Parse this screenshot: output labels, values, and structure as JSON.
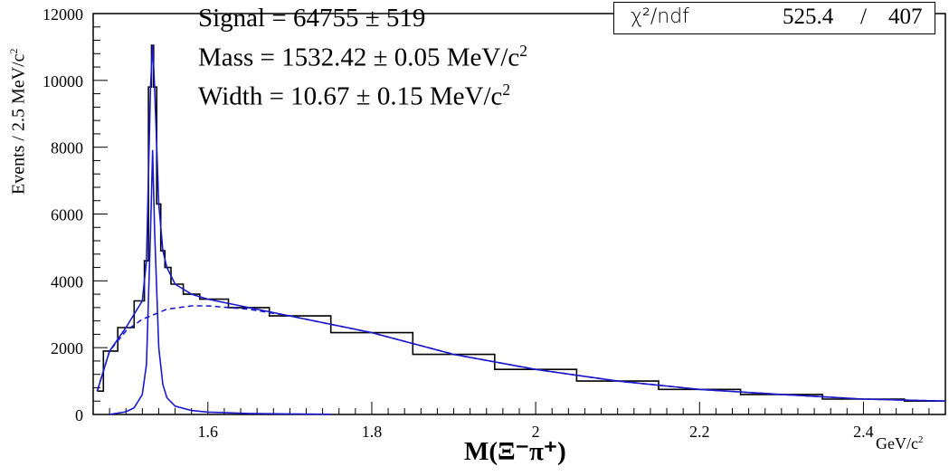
{
  "chart_data": {
    "type": "histogram-fit",
    "xlim": [
      1.46,
      2.5
    ],
    "ylim": [
      0,
      12000
    ],
    "x_ticks": [
      1.6,
      1.8,
      2,
      2.2,
      2.4
    ],
    "x_tick_labels": [
      "1.6",
      "1.8",
      "2",
      "2.2",
      "2.4"
    ],
    "y_ticks": [
      0,
      2000,
      4000,
      6000,
      8000,
      10000,
      12000
    ],
    "y_tick_labels": [
      "0",
      "2000",
      "4000",
      "6000",
      "8000",
      "10000",
      "12000"
    ],
    "xlabel": "M(Ξ⁻π⁺)",
    "xlabel_unit": "GeV/c",
    "ylabel": "Events / 2.5 MeV/c",
    "histogram": {
      "x": [
        1.465,
        1.48,
        1.5,
        1.52,
        1.525,
        1.53,
        1.5325,
        1.535,
        1.54,
        1.545,
        1.55,
        1.56,
        1.58,
        1.6,
        1.65,
        1.7,
        1.8,
        1.9,
        2.0,
        2.1,
        2.2,
        2.3,
        2.4,
        2.5
      ],
      "y": [
        700,
        1900,
        2600,
        3400,
        4600,
        9800,
        11050,
        9800,
        6300,
        4900,
        4400,
        3900,
        3600,
        3450,
        3200,
        2950,
        2450,
        1800,
        1350,
        1000,
        750,
        600,
        460,
        400
      ]
    },
    "series": [
      {
        "name": "",
        "style": "solid",
        "x": [
          1.465,
          1.48,
          1.5,
          1.52,
          1.525,
          1.53,
          1.5325,
          1.535,
          1.54,
          1.545,
          1.55,
          1.56,
          1.58,
          1.6,
          1.65,
          1.7,
          1.8,
          1.9,
          2.0,
          2.1,
          2.2,
          2.3,
          2.4,
          2.5
        ],
        "y": [
          700,
          1900,
          2600,
          3400,
          4600,
          9800,
          11050,
          9800,
          6300,
          4900,
          4400,
          3900,
          3600,
          3450,
          3200,
          2950,
          2450,
          1800,
          1350,
          1000,
          750,
          600,
          460,
          400
        ]
      },
      {
        "name": "",
        "style": "solid",
        "x": [
          1.48,
          1.5,
          1.51,
          1.52,
          1.525,
          1.53,
          1.5325,
          1.535,
          1.54,
          1.545,
          1.55,
          1.56,
          1.58,
          1.6,
          1.65,
          1.7,
          1.75
        ],
        "y": [
          0,
          80,
          200,
          600,
          1500,
          5500,
          7900,
          5500,
          2000,
          900,
          500,
          250,
          120,
          70,
          30,
          15,
          5
        ]
      },
      {
        "name": "",
        "style": "dashed",
        "x": [
          1.465,
          1.48,
          1.5,
          1.52,
          1.55,
          1.58,
          1.6,
          1.65,
          1.7,
          1.8,
          1.9,
          2.0,
          2.1,
          2.2,
          2.3,
          2.4,
          2.5
        ],
        "y": [
          700,
          1900,
          2500,
          2850,
          3150,
          3250,
          3250,
          3150,
          2950,
          2450,
          1800,
          1350,
          1000,
          750,
          600,
          460,
          400
        ]
      }
    ],
    "colors": {
      "fit": "#1a1acc",
      "histogram": "#000000",
      "frame": "#000000"
    },
    "grid": false
  },
  "annotations": {
    "signal": "Signal = 64755 ± 519",
    "mass": "Mass = 1532.42 ± 0.05 MeV/c",
    "width": "Width = 10.67 ± 0.15 MeV/c",
    "sup": "2"
  },
  "stats": {
    "chi_label": "χ²/ndf",
    "chi2": "525.4",
    "separator": "/",
    "ndf": "407"
  }
}
